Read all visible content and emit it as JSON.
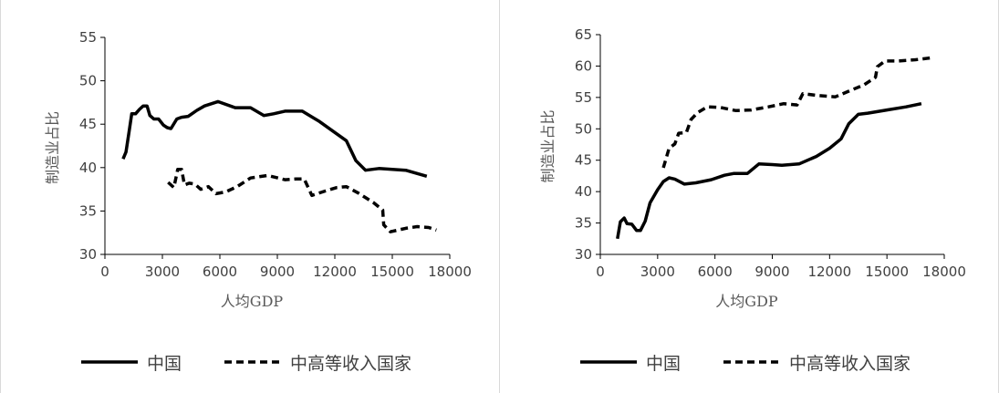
{
  "colors": {
    "line": "#000000",
    "axis": "#000000",
    "text": "#404040",
    "label": "#595959"
  },
  "chart_data": [
    {
      "type": "line",
      "xlabel": "人均GDP",
      "ylabel": "制造业占比",
      "xlim": [
        0,
        18000
      ],
      "ylim": [
        30,
        55
      ],
      "xticks": [
        0,
        3000,
        6000,
        9000,
        12000,
        15000,
        18000
      ],
      "yticks": [
        30,
        35,
        40,
        45,
        50,
        55
      ],
      "grid": false,
      "legend_position": "bottom",
      "series": [
        {
          "name": "中国",
          "style": "solid",
          "points": [
            [
              950,
              41
            ],
            [
              1100,
              41.8
            ],
            [
              1250,
              44
            ],
            [
              1400,
              46.2
            ],
            [
              1600,
              46.2
            ],
            [
              1800,
              46.7
            ],
            [
              2000,
              47.1
            ],
            [
              2200,
              47.1
            ],
            [
              2350,
              46
            ],
            [
              2550,
              45.6
            ],
            [
              2800,
              45.6
            ],
            [
              3050,
              44.9
            ],
            [
              3250,
              44.6
            ],
            [
              3450,
              44.5
            ],
            [
              3750,
              45.6
            ],
            [
              4000,
              45.8
            ],
            [
              4350,
              45.9
            ],
            [
              4800,
              46.6
            ],
            [
              5200,
              47.1
            ],
            [
              5900,
              47.6
            ],
            [
              6800,
              46.9
            ],
            [
              7600,
              46.9
            ],
            [
              8300,
              46
            ],
            [
              8800,
              46.2
            ],
            [
              9400,
              46.5
            ],
            [
              10300,
              46.5
            ],
            [
              11200,
              45.3
            ],
            [
              12600,
              43.1
            ],
            [
              13100,
              40.8
            ],
            [
              13600,
              39.7
            ],
            [
              14300,
              39.9
            ],
            [
              15700,
              39.7
            ],
            [
              16800,
              39
            ]
          ]
        },
        {
          "name": "中高等收入国家",
          "style": "dashed",
          "points": [
            [
              3300,
              38.3
            ],
            [
              3600,
              37.7
            ],
            [
              3800,
              39.8
            ],
            [
              4000,
              39.8
            ],
            [
              4150,
              38
            ],
            [
              4400,
              38.2
            ],
            [
              4700,
              38.1
            ],
            [
              5000,
              37.5
            ],
            [
              5400,
              37.8
            ],
            [
              5800,
              37
            ],
            [
              6300,
              37.2
            ],
            [
              6900,
              37.8
            ],
            [
              7600,
              38.8
            ],
            [
              8500,
              39.1
            ],
            [
              9400,
              38.6
            ],
            [
              10000,
              38.7
            ],
            [
              10400,
              38.7
            ],
            [
              10800,
              36.8
            ],
            [
              11500,
              37.3
            ],
            [
              12100,
              37.7
            ],
            [
              12600,
              37.8
            ],
            [
              13200,
              37.1
            ],
            [
              14000,
              36
            ],
            [
              14500,
              35.1
            ],
            [
              14550,
              33.4
            ],
            [
              14900,
              32.6
            ],
            [
              15700,
              33
            ],
            [
              16300,
              33.2
            ],
            [
              16900,
              33.1
            ],
            [
              17300,
              32.8
            ]
          ]
        }
      ]
    },
    {
      "type": "line",
      "xlabel": "人均GDP",
      "ylabel": "制造业占比",
      "xlim": [
        0,
        18000
      ],
      "ylim": [
        30,
        65
      ],
      "xticks": [
        0,
        3000,
        6000,
        9000,
        12000,
        15000,
        18000
      ],
      "yticks": [
        30,
        35,
        40,
        45,
        50,
        55,
        60,
        65
      ],
      "grid": false,
      "legend_position": "bottom",
      "series": [
        {
          "name": "中国",
          "style": "solid",
          "points": [
            [
              900,
              32.5
            ],
            [
              1050,
              35.2
            ],
            [
              1250,
              35.8
            ],
            [
              1400,
              34.9
            ],
            [
              1650,
              34.8
            ],
            [
              1900,
              33.8
            ],
            [
              2100,
              33.8
            ],
            [
              2350,
              35.3
            ],
            [
              2600,
              38.2
            ],
            [
              3000,
              40.3
            ],
            [
              3300,
              41.6
            ],
            [
              3600,
              42.2
            ],
            [
              3900,
              42
            ],
            [
              4400,
              41.2
            ],
            [
              5000,
              41.4
            ],
            [
              5800,
              41.9
            ],
            [
              6500,
              42.6
            ],
            [
              7000,
              42.9
            ],
            [
              7700,
              42.9
            ],
            [
              8300,
              44.4
            ],
            [
              9000,
              44.3
            ],
            [
              9500,
              44.2
            ],
            [
              10400,
              44.4
            ],
            [
              11300,
              45.6
            ],
            [
              12000,
              46.9
            ],
            [
              12600,
              48.4
            ],
            [
              13000,
              50.8
            ],
            [
              13500,
              52.3
            ],
            [
              14000,
              52.5
            ],
            [
              15000,
              53
            ],
            [
              16000,
              53.5
            ],
            [
              16800,
              54
            ]
          ]
        },
        {
          "name": "中高等收入国家",
          "style": "dashed",
          "points": [
            [
              3300,
              43.8
            ],
            [
              3600,
              46.9
            ],
            [
              3900,
              47.6
            ],
            [
              4100,
              49.3
            ],
            [
              4500,
              49.4
            ],
            [
              4750,
              51.5
            ],
            [
              5100,
              52.6
            ],
            [
              5600,
              53.5
            ],
            [
              6300,
              53.4
            ],
            [
              7100,
              52.9
            ],
            [
              7900,
              53
            ],
            [
              8800,
              53.5
            ],
            [
              9600,
              54
            ],
            [
              10300,
              53.8
            ],
            [
              10600,
              55.6
            ],
            [
              11400,
              55.3
            ],
            [
              12300,
              55.1
            ],
            [
              13000,
              56
            ],
            [
              13800,
              57
            ],
            [
              14400,
              58.2
            ],
            [
              14500,
              59.9
            ],
            [
              14900,
              60.8
            ],
            [
              15600,
              60.8
            ],
            [
              16500,
              61
            ],
            [
              17300,
              61.3
            ]
          ]
        }
      ]
    }
  ]
}
